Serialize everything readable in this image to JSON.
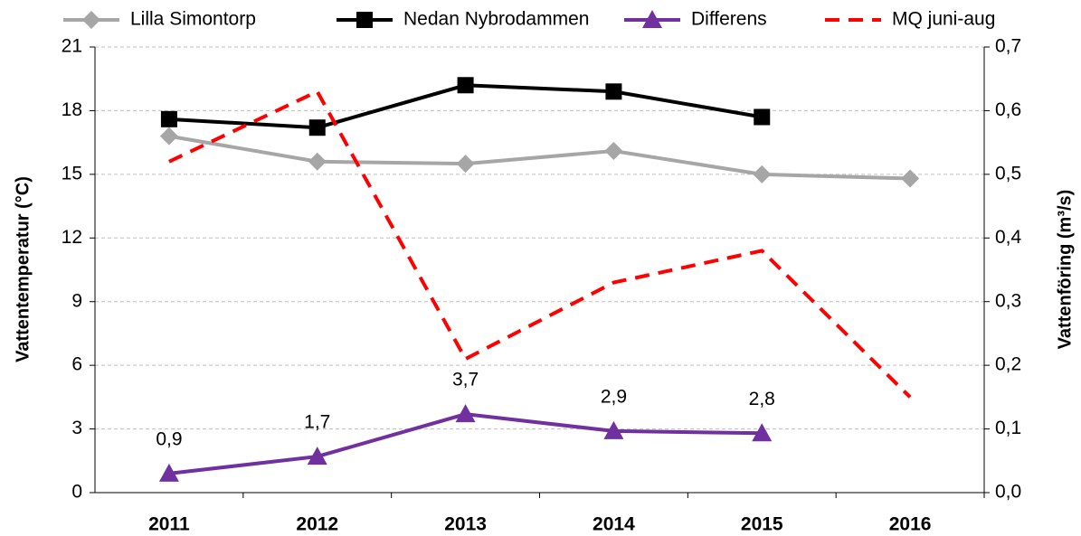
{
  "chart_data": {
    "type": "line",
    "categories": [
      "2011",
      "2012",
      "2013",
      "2014",
      "2015",
      "2016"
    ],
    "series": [
      {
        "name": "Lilla Simontorp",
        "color": "#a6a6a6",
        "marker": "diamond",
        "values": [
          16.8,
          15.6,
          15.5,
          16.1,
          15.0,
          14.8
        ]
      },
      {
        "name": "Nedan Nybrodammen",
        "color": "#000000",
        "marker": "square",
        "values": [
          17.6,
          17.2,
          19.2,
          18.9,
          17.7,
          null
        ]
      },
      {
        "name": "Differens",
        "color": "#7030a0",
        "marker": "triangle",
        "values": [
          0.9,
          1.7,
          3.7,
          2.9,
          2.8,
          null
        ],
        "value_labels": [
          "0,9",
          "1,7",
          "3,7",
          "2,9",
          "2,8",
          null
        ]
      },
      {
        "name": "MQ juni-aug",
        "color": "#ff0000",
        "dashed": true,
        "axis": "y2",
        "values": [
          0.52,
          0.63,
          0.21,
          0.33,
          0.38,
          0.15
        ]
      }
    ],
    "y_label": "Vattentemperatur (°C)",
    "y2_label": "Vattenföring (m³/s)",
    "ylim": [
      0,
      21
    ],
    "yticks": [
      0,
      3,
      6,
      9,
      12,
      15,
      18,
      21
    ],
    "y2lim": [
      0,
      0.7
    ],
    "y2ticks": [
      {
        "value": 0,
        "label": "0,0"
      },
      {
        "value": 0.1,
        "label": "0,1"
      },
      {
        "value": 0.2,
        "label": "0,2"
      },
      {
        "value": 0.3,
        "label": "0,3"
      },
      {
        "value": 0.4,
        "label": "0,4"
      },
      {
        "value": 0.5,
        "label": "0,5"
      },
      {
        "value": 0.6,
        "label": "0,6"
      },
      {
        "value": 0.7,
        "label": "0,7"
      }
    ],
    "grid": true,
    "legend": "top"
  }
}
